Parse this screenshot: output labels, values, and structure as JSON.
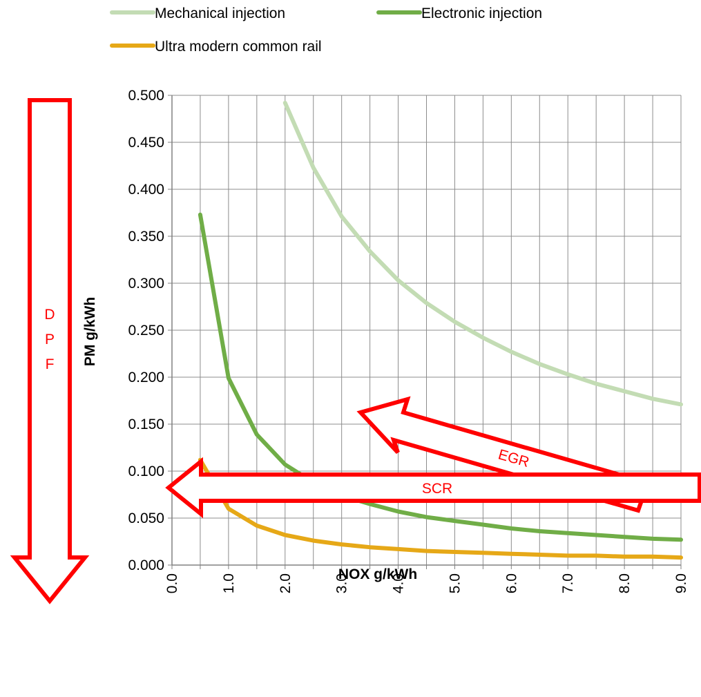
{
  "chart_data": {
    "type": "line",
    "xlabel": "NOX g/kWh",
    "ylabel": "PM g/kWh",
    "xlim": [
      0,
      9
    ],
    "ylim": [
      0,
      0.5
    ],
    "x_ticks": [
      "0.0",
      "1.0",
      "2.0",
      "3.0",
      "4.0",
      "5.0",
      "6.0",
      "7.0",
      "8.0",
      "9.0"
    ],
    "y_ticks": [
      "0.000",
      "0.050",
      "0.100",
      "0.150",
      "0.200",
      "0.250",
      "0.300",
      "0.350",
      "0.400",
      "0.450",
      "0.500"
    ],
    "grid": true,
    "legend_position": "top",
    "series": [
      {
        "name": "Mechanical injection",
        "color": "#c3dcb4",
        "points": [
          [
            2.0,
            0.492
          ],
          [
            2.5,
            0.423
          ],
          [
            3.0,
            0.371
          ],
          [
            3.5,
            0.334
          ],
          [
            4.0,
            0.303
          ],
          [
            4.5,
            0.279
          ],
          [
            5.0,
            0.259
          ],
          [
            5.5,
            0.242
          ],
          [
            6.0,
            0.227
          ],
          [
            6.5,
            0.214
          ],
          [
            7.0,
            0.203
          ],
          [
            7.5,
            0.193
          ],
          [
            8.0,
            0.185
          ],
          [
            8.5,
            0.177
          ],
          [
            9.0,
            0.171
          ]
        ]
      },
      {
        "name": "Electronic injection",
        "color": "#70ad47",
        "points": [
          [
            0.5,
            0.373
          ],
          [
            1.0,
            0.199
          ],
          [
            1.5,
            0.139
          ],
          [
            2.0,
            0.107
          ],
          [
            2.5,
            0.088
          ],
          [
            3.0,
            0.074
          ],
          [
            3.5,
            0.065
          ],
          [
            4.0,
            0.057
          ],
          [
            4.5,
            0.051
          ],
          [
            5.0,
            0.047
          ],
          [
            5.5,
            0.043
          ],
          [
            6.0,
            0.039
          ],
          [
            6.5,
            0.036
          ],
          [
            7.0,
            0.034
          ],
          [
            7.5,
            0.032
          ],
          [
            8.0,
            0.03
          ],
          [
            8.5,
            0.028
          ],
          [
            9.0,
            0.027
          ]
        ]
      },
      {
        "name": "Ultra modern common rail",
        "color": "#e6a817",
        "points": [
          [
            0.5,
            0.112
          ],
          [
            1.0,
            0.06
          ],
          [
            1.5,
            0.042
          ],
          [
            2.0,
            0.032
          ],
          [
            2.5,
            0.026
          ],
          [
            3.0,
            0.022
          ],
          [
            3.5,
            0.019
          ],
          [
            4.0,
            0.017
          ],
          [
            4.5,
            0.015
          ],
          [
            5.0,
            0.014
          ],
          [
            5.5,
            0.013
          ],
          [
            6.0,
            0.012
          ],
          [
            6.5,
            0.011
          ],
          [
            7.0,
            0.01
          ],
          [
            7.5,
            0.01
          ],
          [
            8.0,
            0.009
          ],
          [
            8.5,
            0.009
          ],
          [
            9.0,
            0.008
          ]
        ]
      }
    ],
    "annotations": {
      "dpf_letters": [
        "D",
        "P",
        "F"
      ],
      "egr_label": "EGR",
      "scr_label": "SCR",
      "arrow_color": "#ff0000"
    }
  }
}
